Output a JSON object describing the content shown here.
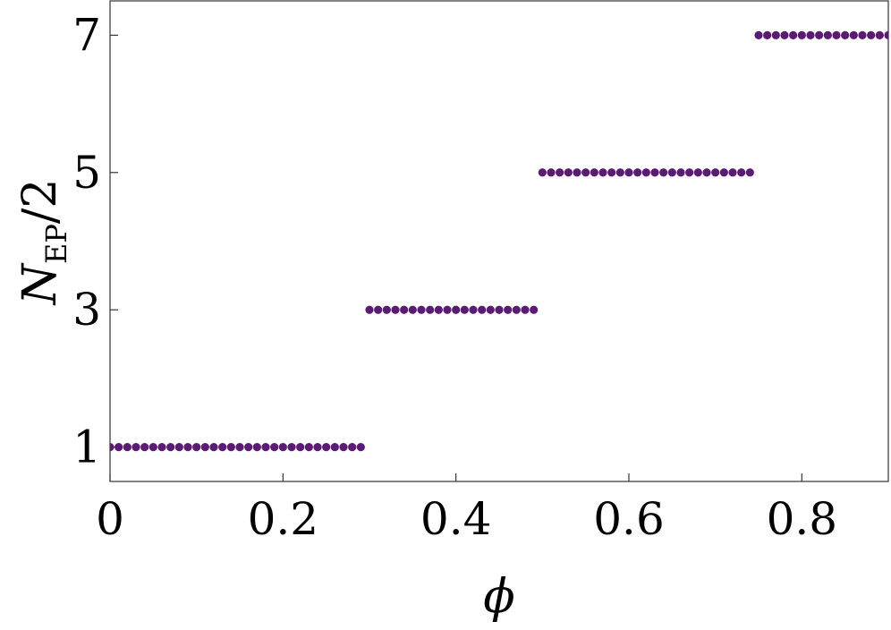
{
  "chart_data": {
    "type": "scatter",
    "xlabel": "ϕ",
    "ylabel": {
      "symbol": "N",
      "subscript": "EP",
      "suffix": "/2"
    },
    "xlim": [
      0,
      0.9
    ],
    "ylim": [
      0.5,
      7.5
    ],
    "x_ticks": [
      {
        "value": 0,
        "label": "0"
      },
      {
        "value": 0.2,
        "label": "0.2"
      },
      {
        "value": 0.4,
        "label": "0.4"
      },
      {
        "value": 0.6,
        "label": "0.6"
      },
      {
        "value": 0.8,
        "label": "0.8"
      }
    ],
    "y_ticks": [
      {
        "value": 1,
        "label": "1"
      },
      {
        "value": 3,
        "label": "3"
      },
      {
        "value": 5,
        "label": "5"
      },
      {
        "value": 7,
        "label": "7"
      }
    ],
    "marker_color": "#5b1a73",
    "grid": false,
    "series": [
      {
        "x": [
          0.0,
          0.01,
          0.02,
          0.03,
          0.04,
          0.05,
          0.06,
          0.07,
          0.08,
          0.09,
          0.1,
          0.11,
          0.12,
          0.13,
          0.14,
          0.15,
          0.16,
          0.17,
          0.18,
          0.19,
          0.2,
          0.21,
          0.22,
          0.23,
          0.24,
          0.25,
          0.26,
          0.27,
          0.28,
          0.29,
          0.3,
          0.31,
          0.32,
          0.33,
          0.34,
          0.35,
          0.36,
          0.37,
          0.38,
          0.39,
          0.4,
          0.41,
          0.42,
          0.43,
          0.44,
          0.45,
          0.46,
          0.47,
          0.48,
          0.49,
          0.5,
          0.51,
          0.52,
          0.53,
          0.54,
          0.55,
          0.56,
          0.57,
          0.58,
          0.59,
          0.6,
          0.61,
          0.62,
          0.63,
          0.64,
          0.65,
          0.66,
          0.67,
          0.68,
          0.69,
          0.7,
          0.71,
          0.72,
          0.73,
          0.74,
          0.75,
          0.76,
          0.77,
          0.78,
          0.79,
          0.8,
          0.81,
          0.82,
          0.83,
          0.84,
          0.85,
          0.86,
          0.87,
          0.88,
          0.89,
          0.9
        ],
        "y": [
          1,
          1,
          1,
          1,
          1,
          1,
          1,
          1,
          1,
          1,
          1,
          1,
          1,
          1,
          1,
          1,
          1,
          1,
          1,
          1,
          1,
          1,
          1,
          1,
          1,
          1,
          1,
          1,
          1,
          1,
          3,
          3,
          3,
          3,
          3,
          3,
          3,
          3,
          3,
          3,
          3,
          3,
          3,
          3,
          3,
          3,
          3,
          3,
          3,
          3,
          5,
          5,
          5,
          5,
          5,
          5,
          5,
          5,
          5,
          5,
          5,
          5,
          5,
          5,
          5,
          5,
          5,
          5,
          5,
          5,
          5,
          5,
          5,
          5,
          5,
          7,
          7,
          7,
          7,
          7,
          7,
          7,
          7,
          7,
          7,
          7,
          7,
          7,
          7,
          7,
          7
        ]
      }
    ]
  }
}
